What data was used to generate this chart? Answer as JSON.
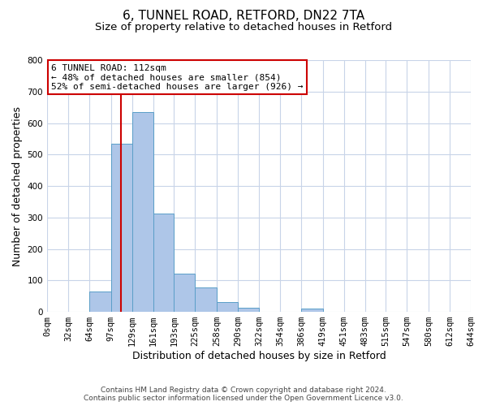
{
  "title": "6, TUNNEL ROAD, RETFORD, DN22 7TA",
  "subtitle": "Size of property relative to detached houses in Retford",
  "xlabel": "Distribution of detached houses by size in Retford",
  "ylabel": "Number of detached properties",
  "bar_left_edges": [
    0,
    32,
    64,
    97,
    129,
    161,
    193,
    225,
    258,
    290,
    322,
    354,
    386,
    419,
    451,
    483,
    515,
    547,
    580,
    612
  ],
  "bar_heights": [
    0,
    0,
    65,
    535,
    635,
    312,
    122,
    77,
    32,
    12,
    0,
    0,
    10,
    0,
    0,
    0,
    0,
    0,
    0,
    0
  ],
  "bar_widths": [
    32,
    32,
    33,
    32,
    32,
    32,
    32,
    33,
    32,
    32,
    32,
    32,
    33,
    32,
    32,
    32,
    32,
    33,
    32,
    32
  ],
  "bar_color": "#aec6e8",
  "bar_edge_color": "#5a9ec8",
  "property_line_x": 112,
  "property_line_color": "#cc0000",
  "annotation_title": "6 TUNNEL ROAD: 112sqm",
  "annotation_line1": "← 48% of detached houses are smaller (854)",
  "annotation_line2": "52% of semi-detached houses are larger (926) →",
  "annotation_box_color": "#cc0000",
  "ylim": [
    0,
    800
  ],
  "yticks": [
    0,
    100,
    200,
    300,
    400,
    500,
    600,
    700,
    800
  ],
  "xtick_labels": [
    "0sqm",
    "32sqm",
    "64sqm",
    "97sqm",
    "129sqm",
    "161sqm",
    "193sqm",
    "225sqm",
    "258sqm",
    "290sqm",
    "322sqm",
    "354sqm",
    "386sqm",
    "419sqm",
    "451sqm",
    "483sqm",
    "515sqm",
    "547sqm",
    "580sqm",
    "612sqm",
    "644sqm"
  ],
  "xtick_positions": [
    0,
    32,
    64,
    97,
    129,
    161,
    193,
    225,
    258,
    290,
    322,
    354,
    386,
    419,
    451,
    483,
    515,
    547,
    580,
    612,
    644
  ],
  "footer_line1": "Contains HM Land Registry data © Crown copyright and database right 2024.",
  "footer_line2": "Contains public sector information licensed under the Open Government Licence v3.0.",
  "background_color": "#ffffff",
  "grid_color": "#c8d4e8",
  "title_fontsize": 11,
  "subtitle_fontsize": 9.5,
  "axis_label_fontsize": 9,
  "tick_fontsize": 7.5,
  "footer_fontsize": 6.5,
  "annotation_fontsize": 8
}
